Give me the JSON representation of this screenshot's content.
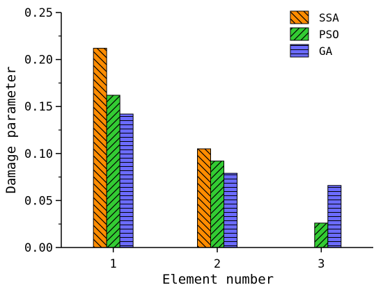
{
  "chart_data": {
    "type": "bar",
    "title": "",
    "xlabel": "Element number",
    "ylabel": "Damage parameter",
    "categories": [
      "1",
      "2",
      "3"
    ],
    "ylim": [
      0,
      0.25
    ],
    "yticks": [
      "0.00",
      "0.05",
      "0.10",
      "0.15",
      "0.20",
      "0.25"
    ],
    "grid": false,
    "legend_position": "top-right",
    "series": [
      {
        "name": "SSA",
        "values": [
          0.212,
          0.105,
          0.0
        ],
        "color": "#ff8c00",
        "pattern": "diagonal-backslash"
      },
      {
        "name": "PSO",
        "values": [
          0.162,
          0.092,
          0.026
        ],
        "color": "#33cc33",
        "pattern": "diagonal-slash"
      },
      {
        "name": "GA",
        "values": [
          0.142,
          0.079,
          0.066
        ],
        "color": "#6b6bff",
        "pattern": "horizontal"
      }
    ]
  }
}
